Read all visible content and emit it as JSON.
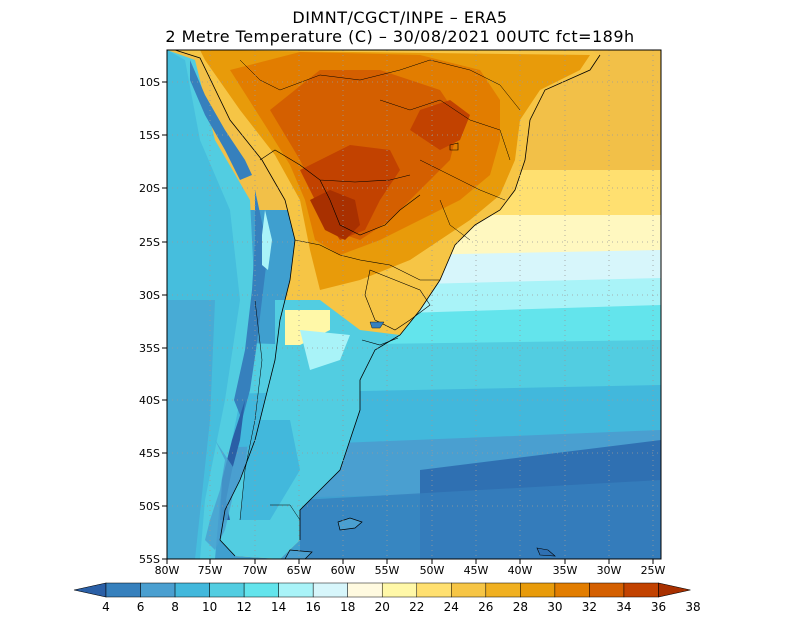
{
  "header": {
    "line1": "DIMNT/CGCT/INPE –  ERA5",
    "line2": "2 Metre Temperature (C) –  30/08/2021 00UTC fct=189h"
  },
  "axes": {
    "lat_labels": [
      "10S",
      "15S",
      "20S",
      "25S",
      "30S",
      "35S",
      "40S",
      "45S",
      "50S",
      "55S"
    ],
    "lon_labels": [
      "80W",
      "75W",
      "70W",
      "65W",
      "60W",
      "55W",
      "50W",
      "45W",
      "40W",
      "35W",
      "30W",
      "25W"
    ]
  },
  "colorbar": {
    "labels": [
      "4",
      "6",
      "8",
      "10",
      "12",
      "14",
      "16",
      "18",
      "20",
      "22",
      "24",
      "26",
      "28",
      "30",
      "32",
      "34",
      "36",
      "38"
    ],
    "colors": [
      "#2a5fa6",
      "#3680bd",
      "#4a9fd0",
      "#42b8dc",
      "#52cde1",
      "#63e4ec",
      "#a9f3f8",
      "#d7f6fb",
      "#fffae0",
      "#fff8a8",
      "#ffe070",
      "#f6c545",
      "#f0b020",
      "#e89b0a",
      "#e27d00",
      "#d45f00",
      "#c24200",
      "#a83000"
    ]
  }
}
